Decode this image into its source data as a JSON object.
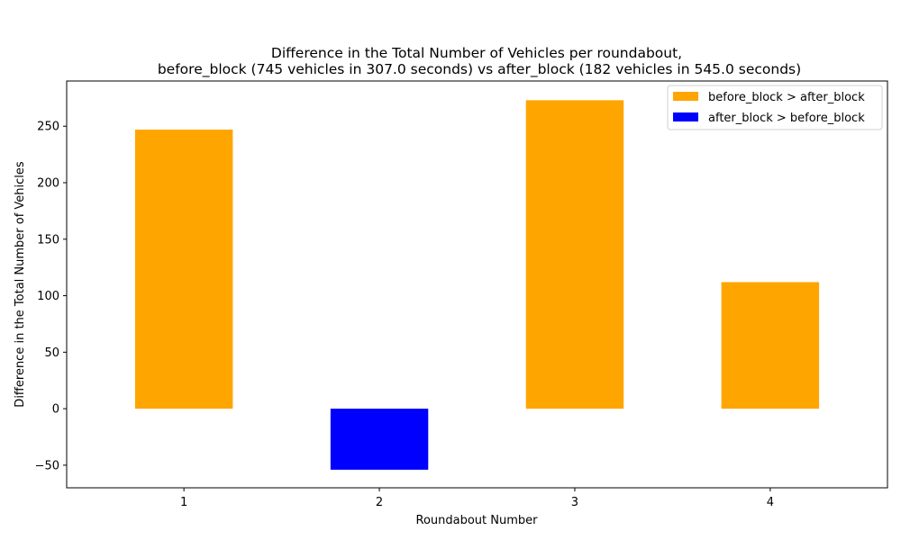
{
  "chart_data": {
    "type": "bar",
    "title": [
      "Difference in the Total Number of Vehicles per roundabout,",
      "before_block (745 vehicles in 307.0 seconds) vs after_block (182 vehicles in 545.0 seconds)"
    ],
    "xlabel": "Roundabout Number",
    "ylabel": "Difference in the Total Number of Vehicles",
    "categories": [
      "1",
      "2",
      "3",
      "4"
    ],
    "values": [
      247,
      -54,
      273,
      112
    ],
    "ylim": [
      -70,
      290
    ],
    "yticks": [
      -50,
      0,
      50,
      100,
      150,
      200,
      250
    ],
    "ytick_labels": [
      "−50",
      "0",
      "50",
      "100",
      "150",
      "200",
      "250"
    ],
    "grid": false,
    "legend": {
      "position": "top-right",
      "entries": [
        {
          "label": "before_block > after_block",
          "color": "#FFA500"
        },
        {
          "label": "after_block > before_block",
          "color": "#0000FF"
        }
      ]
    },
    "colors": {
      "positive": "#FFA500",
      "negative": "#0000FF"
    }
  }
}
